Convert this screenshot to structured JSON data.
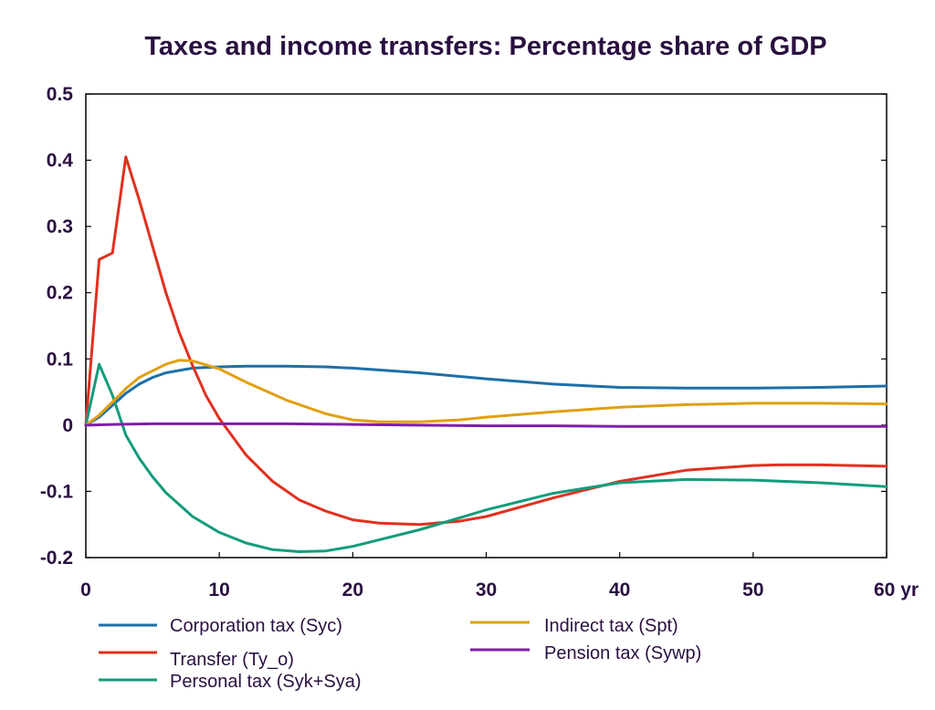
{
  "chart_data": {
    "type": "line",
    "title": "Taxes and income transfers: Percentage share of GDP",
    "xlabel": "",
    "ylabel": "",
    "xlim": [
      0,
      60
    ],
    "ylim": [
      -0.2,
      0.5
    ],
    "x_ticks": [
      0,
      10,
      20,
      30,
      40,
      50,
      60
    ],
    "x_tick_labels": [
      "0",
      "10",
      "20",
      "30",
      "40",
      "50",
      "60 yr"
    ],
    "y_ticks": [
      -0.2,
      -0.1,
      0,
      0.1,
      0.2,
      0.3,
      0.4,
      0.5
    ],
    "y_tick_labels": [
      "-0.2",
      "-0.1",
      "0",
      "0.1",
      "0.2",
      "0.3",
      "0.4",
      "0.5"
    ],
    "grid": false,
    "legend_position": "bottom",
    "series": [
      {
        "name": "Corporation tax (Syc)",
        "color": "#1f6fa8",
        "x": [
          0,
          1,
          2,
          3,
          4,
          5,
          6,
          8,
          10,
          12,
          15,
          18,
          20,
          25,
          30,
          35,
          40,
          45,
          50,
          55,
          60
        ],
        "y": [
          0,
          0.012,
          0.03,
          0.048,
          0.062,
          0.072,
          0.079,
          0.086,
          0.088,
          0.089,
          0.089,
          0.088,
          0.086,
          0.079,
          0.07,
          0.062,
          0.057,
          0.056,
          0.056,
          0.057,
          0.059
        ]
      },
      {
        "name": "Transfer (Ty_o)",
        "color": "#e03020",
        "x": [
          0,
          1,
          2,
          3,
          4,
          5,
          6,
          7,
          8,
          9,
          10,
          12,
          14,
          16,
          18,
          20,
          22,
          25,
          28,
          30,
          35,
          40,
          45,
          50,
          52,
          55,
          60
        ],
        "y": [
          0,
          0.25,
          0.26,
          0.405,
          0.34,
          0.27,
          0.2,
          0.14,
          0.09,
          0.045,
          0.01,
          -0.045,
          -0.085,
          -0.113,
          -0.13,
          -0.143,
          -0.148,
          -0.15,
          -0.145,
          -0.138,
          -0.11,
          -0.085,
          -0.068,
          -0.061,
          -0.06,
          -0.06,
          -0.062
        ]
      },
      {
        "name": "Personal tax (Syk+Sya)",
        "color": "#139c7c",
        "x": [
          0,
          1,
          2,
          3,
          4,
          5,
          6,
          8,
          10,
          12,
          14,
          16,
          18,
          20,
          22,
          25,
          28,
          30,
          35,
          40,
          45,
          50,
          55,
          60
        ],
        "y": [
          0,
          0.092,
          0.045,
          -0.015,
          -0.05,
          -0.078,
          -0.102,
          -0.138,
          -0.162,
          -0.178,
          -0.188,
          -0.191,
          -0.19,
          -0.183,
          -0.173,
          -0.158,
          -0.14,
          -0.128,
          -0.103,
          -0.087,
          -0.082,
          -0.083,
          -0.087,
          -0.093
        ]
      },
      {
        "name": "Indirect tax (Spt)",
        "color": "#e0a010",
        "x": [
          0,
          1,
          2,
          3,
          4,
          5,
          6,
          7,
          8,
          10,
          12,
          15,
          18,
          20,
          22,
          25,
          28,
          30,
          35,
          40,
          45,
          50,
          55,
          60
        ],
        "y": [
          0,
          0.015,
          0.035,
          0.055,
          0.072,
          0.082,
          0.092,
          0.098,
          0.097,
          0.085,
          0.065,
          0.038,
          0.017,
          0.008,
          0.005,
          0.005,
          0.008,
          0.012,
          0.02,
          0.027,
          0.031,
          0.033,
          0.033,
          0.032
        ]
      },
      {
        "name": "Pension tax (Sywp)",
        "color": "#7e1ea8",
        "x": [
          0,
          2,
          5,
          10,
          15,
          20,
          25,
          30,
          35,
          40,
          45,
          50,
          55,
          60
        ],
        "y": [
          0,
          0.001,
          0.002,
          0.002,
          0.002,
          0.001,
          0.0,
          -0.001,
          -0.001,
          -0.002,
          -0.002,
          -0.002,
          -0.002,
          -0.002
        ]
      }
    ]
  }
}
